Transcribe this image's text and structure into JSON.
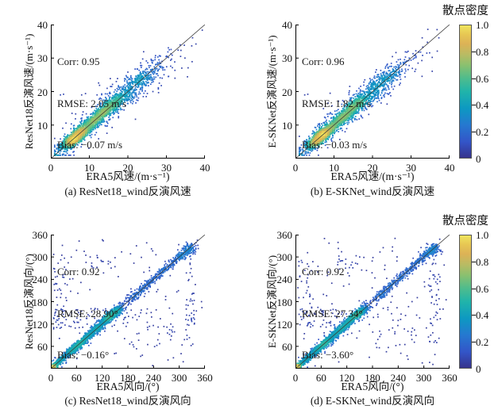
{
  "figure": {
    "background": "#ffffff"
  },
  "chart_data": {
    "type": "scatter",
    "subtype": "density-scatter-2x2",
    "colormap": {
      "name": "parula-like",
      "stops": [
        [
          0,
          "#36338c"
        ],
        [
          0.12,
          "#3355c8"
        ],
        [
          0.25,
          "#2579d0"
        ],
        [
          0.37,
          "#0d98c2"
        ],
        [
          0.5,
          "#20b4aa"
        ],
        [
          0.6,
          "#4ebc8d"
        ],
        [
          0.7,
          "#8ac06f"
        ],
        [
          0.78,
          "#b9bb63"
        ],
        [
          0.86,
          "#dcb256"
        ],
        [
          0.93,
          "#e7c653"
        ],
        [
          1,
          "#efe45e"
        ]
      ]
    },
    "colorbar": {
      "title": "散点密度",
      "tick_labels": [
        "0",
        "0.2",
        "0.4",
        "0.6",
        "0.8",
        "1.0"
      ],
      "range": [
        0,
        1
      ]
    },
    "reference_line": "y = x",
    "plots": [
      {
        "id": "a",
        "caption": "(a) ResNet18_wind反演风速",
        "xlabel": "ERA5风速/(m·s⁻¹)",
        "ylabel": "ResNet18反演风速/(m·s⁻¹)",
        "xlim": [
          0,
          40
        ],
        "ylim": [
          0,
          40
        ],
        "xtick_labels": [
          "0",
          "10",
          "20",
          "30",
          "40"
        ],
        "ytick_labels": [
          "10",
          "20",
          "30",
          "40"
        ],
        "stats": [
          "Corr: 0.95",
          "RMSE: 2.05 m/s",
          "Bias: −0.07 m/s"
        ],
        "corr": 0.95,
        "rmse": "2.05 m/s",
        "bias": "−0.07 m/s",
        "density_model": {
          "seed": 101,
          "min": 1.0,
          "diag_clusters": [
            [
              6.3,
              1.8,
              0.8,
              950,
              0
            ],
            [
              9.8,
              1.4,
              0.85,
              220,
              0
            ],
            [
              12.8,
              1.5,
              0.8,
              310,
              0
            ],
            [
              15.8,
              1.5,
              0.85,
              290,
              0.4
            ],
            [
              14,
              7.2,
              1.25,
              640,
              0
            ],
            [
              22.5,
              3.0,
              1.8,
              300,
              0
            ],
            [
              14,
              7.5,
              2.6,
              150,
              0
            ]
          ],
          "boxes": [
            [
              28,
              37,
              23,
              34,
              16
            ]
          ],
          "outliers": [
            [
              2.5,
              19
            ],
            [
              3.3,
              19.2
            ],
            [
              8,
              19
            ],
            [
              9,
              19.4
            ],
            [
              12,
              19
            ],
            [
              13.2,
              19.3
            ],
            [
              15.5,
              21.5
            ],
            [
              5.5,
              13.5
            ],
            [
              20,
              25.8
            ],
            [
              24,
              18.5
            ],
            [
              26.5,
              20
            ],
            [
              34,
              27
            ],
            [
              30.5,
              24.5
            ],
            [
              17,
              23
            ],
            [
              19,
              14.5
            ]
          ]
        }
      },
      {
        "id": "b",
        "caption": "(b) E-SKNet_wind反演风速",
        "xlabel": "ERA5风速/(m·s⁻¹)",
        "ylabel": "E-SKNet反演风速/(m·s⁻¹)",
        "xlim": [
          0,
          40
        ],
        "ylim": [
          0,
          40
        ],
        "xtick_labels": [
          "0",
          "10",
          "20",
          "30",
          "40"
        ],
        "ytick_labels": [
          "10",
          "20",
          "30",
          "40"
        ],
        "stats": [
          "Corr: 0.96",
          "RMSE: 1.82 m/s",
          "Bias: −0.03 m/s"
        ],
        "corr": 0.96,
        "rmse": "1.82 m/s",
        "bias": "−0.03 m/s",
        "density_model": {
          "seed": 202,
          "min": 1.0,
          "diag_clusters": [
            [
              6.3,
              1.8,
              0.78,
              950,
              0
            ],
            [
              9.8,
              1.4,
              0.8,
              220,
              0
            ],
            [
              12.8,
              1.5,
              0.75,
              310,
              0
            ],
            [
              15.8,
              1.5,
              0.8,
              290,
              0.3
            ],
            [
              14,
              7.2,
              1.15,
              640,
              0
            ],
            [
              22.8,
              2.8,
              1.6,
              300,
              0
            ],
            [
              14,
              7.5,
              2.4,
              130,
              0
            ]
          ],
          "boxes": [
            [
              28,
              37,
              24,
              33,
              12
            ]
          ],
          "outliers": [
            [
              2.4,
              19
            ],
            [
              3.2,
              19.2
            ],
            [
              9,
              19.5
            ],
            [
              14,
              20.2
            ],
            [
              33,
              30.8
            ],
            [
              35.5,
              30.2
            ],
            [
              31,
              26
            ],
            [
              27,
              22
            ],
            [
              18,
              23.5
            ],
            [
              21,
              26.5
            ]
          ]
        }
      },
      {
        "id": "c",
        "caption": "(c) ResNet18_wind反演风向",
        "xlabel": "ERA5风向/(°)",
        "ylabel": "ResNet18反演风向/(°)",
        "xlim": [
          0,
          360
        ],
        "ylim": [
          0,
          360
        ],
        "xtick_labels": [
          "0",
          "60",
          "120",
          "180",
          "240",
          "300",
          "360"
        ],
        "ytick_labels": [
          "60",
          "120",
          "180",
          "240",
          "300",
          "360"
        ],
        "stats": [
          "Corr: 0.92",
          "RMSE: 28.90°",
          "Bias: −0.16°"
        ],
        "corr": 0.92,
        "rmse": "28.90°",
        "bias": "−0.16°",
        "density_model": {
          "seed": 303,
          "min": 0.3,
          "diag_clusters": [
            [
              6,
              5,
              2.5,
              260,
              0
            ],
            [
              25,
              8,
              3.5,
              200,
              0
            ],
            [
              48,
              8,
              4,
              200,
              0
            ],
            [
              67,
              7,
              3.5,
              260,
              0
            ],
            [
              90,
              9,
              4.5,
              220,
              0
            ],
            [
              112,
              8,
              4.5,
              210,
              0
            ],
            [
              137,
              10,
              4.5,
              430,
              2
            ],
            [
              156,
              7,
              5,
              170,
              0
            ],
            [
              85,
              46,
              7,
              310,
              0
            ],
            [
              197,
              12,
              5,
              90,
              0
            ],
            [
              222,
              12,
              5,
              90,
              0
            ],
            [
              248,
              12,
              5,
              80,
              0
            ],
            [
              270,
              10,
              5,
              60,
              0
            ],
            [
              293,
              10,
              5,
              70,
              0
            ],
            [
              312,
              10,
              6,
              130,
              0
            ],
            [
              325,
              5,
              7,
              70,
              0
            ]
          ],
          "boxes": [
            [
              5,
              45,
              100,
              310,
              48
            ],
            [
              312,
              338,
              60,
              300,
              42
            ],
            [
              10,
              185,
              108,
              162,
              52
            ],
            [
              185,
              285,
              55,
              165,
              32
            ],
            [
              95,
              150,
              265,
              305,
              14
            ],
            [
              5,
              355,
              5,
              350,
              105
            ]
          ],
          "outliers": [
            [
              200,
              330
            ],
            [
              150,
              298
            ],
            [
              92,
              300
            ],
            [
              60,
              318
            ],
            [
              340,
              155
            ],
            [
              352,
              180
            ]
          ]
        }
      },
      {
        "id": "d",
        "caption": "(d) E-SKNet_wind反演风向",
        "xlabel": "ERA5风向/(°)",
        "ylabel": "E-SKNet反演风向/(°)",
        "xlim": [
          0,
          360
        ],
        "ylim": [
          0,
          360
        ],
        "xtick_labels": [
          "0",
          "60",
          "120",
          "180",
          "240",
          "300",
          "360"
        ],
        "ytick_labels": [
          "60",
          "120",
          "180",
          "240",
          "300",
          "360"
        ],
        "stats": [
          "Corr: 0.92",
          "RMSE: 27.34°",
          "Bias: −3.60°"
        ],
        "corr": 0.92,
        "rmse": "27.34°",
        "bias": "−3.60°",
        "density_model": {
          "seed": 404,
          "min": 0.3,
          "diag_clusters": [
            [
              6,
              5,
              2.5,
              260,
              0
            ],
            [
              25,
              8,
              3.5,
              200,
              0
            ],
            [
              48,
              8,
              4,
              200,
              0
            ],
            [
              67,
              7,
              3.5,
              260,
              0
            ],
            [
              90,
              9,
              4.5,
              220,
              0
            ],
            [
              112,
              8,
              4.5,
              210,
              0
            ],
            [
              137,
              10,
              4.5,
              430,
              2
            ],
            [
              156,
              7,
              5,
              170,
              0
            ],
            [
              85,
              46,
              7,
              310,
              0
            ],
            [
              197,
              12,
              5,
              90,
              0
            ],
            [
              222,
              12,
              5,
              90,
              0
            ],
            [
              248,
              12,
              5,
              80,
              0
            ],
            [
              270,
              10,
              5,
              60,
              0
            ],
            [
              293,
              10,
              5,
              70,
              0
            ],
            [
              312,
              10,
              6,
              130,
              0
            ],
            [
              325,
              5,
              7,
              70,
              0
            ]
          ],
          "boxes": [
            [
              5,
              45,
              110,
              300,
              40
            ],
            [
              312,
              338,
              60,
              300,
              44
            ],
            [
              10,
              185,
              108,
              162,
              50
            ],
            [
              185,
              285,
              55,
              165,
              30
            ],
            [
              95,
              150,
              265,
              305,
              16
            ],
            [
              5,
              355,
              5,
              350,
              100
            ]
          ],
          "outliers": [
            [
              205,
              325
            ],
            [
              150,
              300
            ],
            [
              110,
              290
            ],
            [
              345,
              160
            ],
            [
              330,
              70
            ],
            [
              352,
              185
            ]
          ]
        }
      }
    ]
  }
}
